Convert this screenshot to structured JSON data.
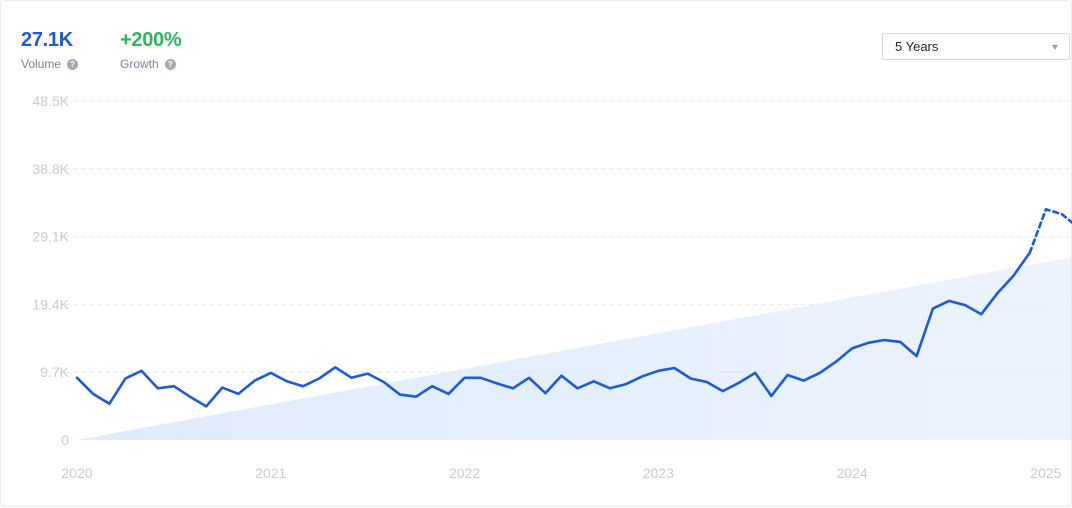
{
  "header": {
    "volume": {
      "value": "27.1K",
      "label": "Volume",
      "color": "#1e5bd3"
    },
    "growth": {
      "value": "+200%",
      "label": "Growth",
      "color": "#2eb55f"
    },
    "help_icon": "question-circle-icon",
    "range_select": {
      "selected": "5 Years",
      "icon": "caret-down-icon"
    }
  },
  "chart_data": {
    "type": "line",
    "title": "",
    "xlabel": "",
    "ylabel": "",
    "ylim": [
      0,
      48500
    ],
    "xlim": [
      2020.0,
      2025.14
    ],
    "y_ticks": [
      {
        "value": 0,
        "label": "0"
      },
      {
        "value": 9700,
        "label": "9.7K"
      },
      {
        "value": 19400,
        "label": "19.4K"
      },
      {
        "value": 29100,
        "label": "29.1K"
      },
      {
        "value": 38800,
        "label": "38.8K"
      },
      {
        "value": 48500,
        "label": "48.5K"
      }
    ],
    "x_ticks": [
      {
        "value": 2020,
        "label": "2020"
      },
      {
        "value": 2021,
        "label": "2021"
      },
      {
        "value": 2022,
        "label": "2022"
      },
      {
        "value": 2023,
        "label": "2023"
      },
      {
        "value": 2024,
        "label": "2024"
      },
      {
        "value": 2025,
        "label": "2025"
      }
    ],
    "grid": "horizontal-dashed",
    "line_color": "#1e5bd3",
    "trend_fill_color": "#dbe9fb",
    "series": [
      {
        "style": "solid",
        "x": [
          2020.0,
          2020.083,
          2020.167,
          2020.25,
          2020.333,
          2020.417,
          2020.5,
          2020.583,
          2020.667,
          2020.75,
          2020.833,
          2020.917,
          2021.0,
          2021.083,
          2021.167,
          2021.25,
          2021.333,
          2021.417,
          2021.5,
          2021.583,
          2021.667,
          2021.75,
          2021.833,
          2021.917,
          2022.0,
          2022.083,
          2022.167,
          2022.25,
          2022.333,
          2022.417,
          2022.5,
          2022.583,
          2022.667,
          2022.75,
          2022.833,
          2022.917,
          2023.0,
          2023.083,
          2023.167,
          2023.25,
          2023.333,
          2023.417,
          2023.5,
          2023.583,
          2023.667,
          2023.75,
          2023.833,
          2023.917,
          2024.0,
          2024.083,
          2024.167,
          2024.25,
          2024.333,
          2024.417,
          2024.5,
          2024.583,
          2024.667,
          2024.75,
          2024.833,
          2024.917
        ],
        "y": [
          8900,
          6600,
          5200,
          8800,
          9900,
          7400,
          7700,
          6200,
          4800,
          7500,
          6600,
          8500,
          9600,
          8400,
          7700,
          8800,
          10400,
          8900,
          9500,
          8300,
          6500,
          6200,
          7700,
          6600,
          8900,
          8900,
          8100,
          7400,
          8900,
          6700,
          9200,
          7400,
          8400,
          7400,
          8000,
          9100,
          9900,
          10300,
          8800,
          8300,
          7000,
          8200,
          9600,
          6300,
          9300,
          8500,
          9600,
          11200,
          13100,
          13900,
          14300,
          14000,
          12000,
          18800,
          19900,
          19300,
          18000,
          21000,
          23500,
          26800
        ]
      },
      {
        "style": "dashed",
        "x": [
          2024.917,
          2025.0,
          2025.083,
          2025.14
        ],
        "y": [
          26800,
          33000,
          32300,
          31000
        ]
      }
    ]
  }
}
